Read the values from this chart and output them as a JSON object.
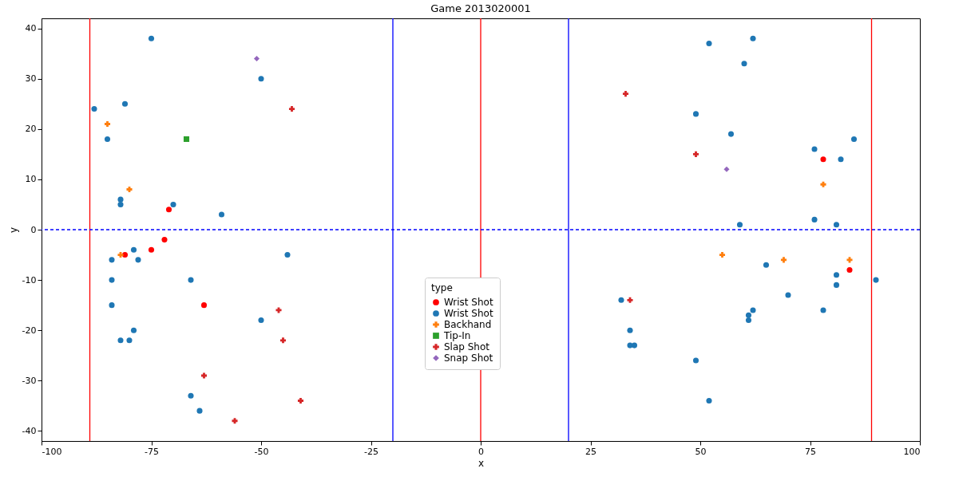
{
  "chart_data": {
    "type": "scatter",
    "title": "Game 2013020001",
    "xlabel": "x",
    "ylabel": "y",
    "legend_title": "type",
    "legend": "bottom",
    "grid": false,
    "xlim": [
      -100,
      100
    ],
    "xticks": [
      -100,
      -75,
      -50,
      -25,
      0,
      25,
      50,
      75,
      100
    ],
    "ylim": [
      -42,
      42
    ],
    "yticks": [
      -40,
      -30,
      -20,
      -10,
      0,
      10,
      20,
      30,
      40
    ],
    "series": [
      {
        "name": "Wrist Shot",
        "color": "#ff0000",
        "marker": "circle",
        "x": [
          -81,
          -75,
          -72,
          -71,
          -63,
          78,
          84
        ],
        "values": [
          -5,
          -4,
          -2,
          4,
          -15,
          14,
          -8
        ]
      },
      {
        "name": "Wrist Shot",
        "color": "#1f77b4",
        "marker": "circle",
        "x": [
          -88,
          -85,
          -81,
          -75,
          -82,
          -82,
          -70,
          -59,
          -50,
          -84,
          -79,
          -84,
          -78,
          -84,
          -66,
          -79,
          -82,
          -80,
          -44,
          -50,
          -66,
          -64,
          52,
          62,
          60,
          49,
          57,
          76,
          85,
          82,
          59,
          76,
          81,
          65,
          70,
          81,
          81,
          78,
          90,
          62,
          61,
          61,
          32,
          34,
          34,
          35,
          49,
          52
        ],
        "values": [
          24,
          18,
          25,
          38,
          6,
          5,
          5,
          3,
          30,
          -6,
          -4,
          -10,
          -6,
          -15,
          -10,
          -20,
          -22,
          -22,
          -5,
          -18,
          -33,
          -36,
          37,
          38,
          33,
          23,
          19,
          16,
          18,
          14,
          1,
          2,
          1,
          -7,
          -13,
          -9,
          -11,
          -16,
          -10,
          -16,
          -17,
          -18,
          -14,
          -20,
          -23,
          -23,
          -26,
          -34
        ]
      },
      {
        "name": "Backhand",
        "color": "#ff7f0e",
        "marker": "cross",
        "x": [
          -85,
          -80,
          -82,
          78,
          55,
          69,
          84
        ],
        "values": [
          21,
          8,
          -5,
          9,
          -5,
          -6,
          -6
        ]
      },
      {
        "name": "Tip-In",
        "color": "#2ca02c",
        "marker": "square",
        "x": [
          -67
        ],
        "values": [
          18
        ]
      },
      {
        "name": "Slap Shot",
        "color": "#d62728",
        "marker": "cross",
        "x": [
          -43,
          -46,
          -45,
          -63,
          -56,
          -41,
          33,
          49,
          34
        ],
        "values": [
          24,
          -16,
          -22,
          -29,
          -38,
          -34,
          27,
          15,
          -14
        ]
      },
      {
        "name": "Snap Shot",
        "color": "#9467bd",
        "marker": "diamond",
        "x": [
          -51,
          56
        ],
        "values": [
          34,
          12
        ]
      }
    ],
    "ref_lines": [
      {
        "axis": "x",
        "value": -89,
        "color": "#ff0000"
      },
      {
        "axis": "x",
        "value": 89,
        "color": "#ff0000"
      },
      {
        "axis": "x",
        "value": 0,
        "color": "#ff0000"
      },
      {
        "axis": "x",
        "value": -20,
        "color": "#0000ff"
      },
      {
        "axis": "x",
        "value": 20,
        "color": "#0000ff"
      },
      {
        "axis": "y",
        "value": 0,
        "color": "#0000ff",
        "line_style": "dashed"
      }
    ]
  }
}
